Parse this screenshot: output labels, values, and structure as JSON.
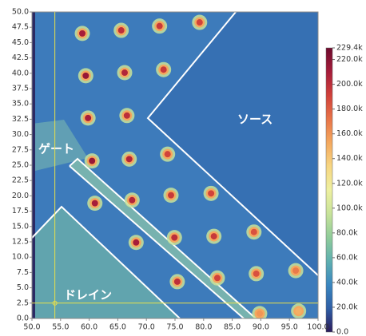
{
  "chart_data": {
    "type": "heatmap",
    "xlim": [
      50,
      100
    ],
    "ylim": [
      0,
      50
    ],
    "xticks": [
      {
        "value": 50,
        "label": "50.0"
      },
      {
        "value": 55,
        "label": "55.0"
      },
      {
        "value": 60,
        "label": "60.0"
      },
      {
        "value": 65,
        "label": "65.0"
      },
      {
        "value": 70,
        "label": "70.0"
      },
      {
        "value": 75,
        "label": "75.0"
      },
      {
        "value": 80,
        "label": "80.0"
      },
      {
        "value": 85,
        "label": "85.0"
      },
      {
        "value": 90,
        "label": "90.0"
      },
      {
        "value": 95,
        "label": "95.0"
      },
      {
        "value": 100,
        "label": "100.0"
      }
    ],
    "yticks": [
      {
        "value": 0,
        "label": "0.0"
      },
      2.5,
      {
        "value": 5,
        "label": "5.0"
      },
      7.5,
      {
        "value": 10,
        "label": "10.0"
      },
      12.5,
      {
        "value": 15,
        "label": "15.0"
      },
      17.5,
      {
        "value": 20,
        "label": "20.0"
      },
      22.5,
      {
        "value": 25,
        "label": "25.0"
      },
      27.5,
      {
        "value": 30,
        "label": "30.0"
      },
      32.5,
      {
        "value": 35,
        "label": "35.0"
      },
      37.5,
      {
        "value": 40,
        "label": "40.0"
      },
      42.5,
      {
        "value": 45,
        "label": "45.0"
      },
      47.5,
      {
        "value": 50,
        "label": "50.0"
      }
    ],
    "spots": {
      "x": [
        58.8,
        65.6,
        72.3,
        79.3,
        59.4,
        66.2,
        73.0,
        59.8,
        66.6,
        60.5,
        67.0,
        73.7,
        61.0,
        67.5,
        74.3,
        81.3,
        68.2,
        74.9,
        81.8,
        88.8,
        75.4,
        82.4,
        89.2,
        96.1,
        89.8,
        96.6
      ],
      "y": [
        46.5,
        47.0,
        47.7,
        48.3,
        39.6,
        40.1,
        40.6,
        32.7,
        33.1,
        25.7,
        26.0,
        26.8,
        18.8,
        19.3,
        20.1,
        20.4,
        12.4,
        13.2,
        13.4,
        14.1,
        6.0,
        6.6,
        7.3,
        7.8,
        0.8,
        1.2
      ],
      "values": [
        210000,
        200000,
        195000,
        190000,
        215000,
        205000,
        195000,
        210000,
        200000,
        215000,
        205000,
        190000,
        210000,
        205000,
        195000,
        190000,
        210000,
        200000,
        195000,
        185000,
        200000,
        190000,
        185000,
        170000,
        160000,
        150000
      ]
    },
    "crosshair": {
      "x": 54,
      "y": 2.5,
      "color": "#e8e04a"
    },
    "annotations": [
      "ゲート",
      "ソース",
      "ドレイン"
    ],
    "colorbar": {
      "lim": [
        0,
        229400
      ],
      "ticks": [
        {
          "value": 0,
          "label": "0.0"
        },
        {
          "value": 20000,
          "label": "20.0k"
        },
        {
          "value": 40000,
          "label": "40.0k"
        },
        {
          "value": 60000,
          "label": "60.0k"
        },
        {
          "value": 80000,
          "label": "80.0k"
        },
        {
          "value": 100000,
          "label": "100.0k"
        },
        {
          "value": 120000,
          "label": "120.0k"
        },
        {
          "value": 140000,
          "label": "140.0k"
        },
        {
          "value": 160000,
          "label": "160.0k"
        },
        {
          "value": 180000,
          "label": "180.0k"
        },
        {
          "value": 200000,
          "label": "200.0k"
        },
        {
          "value": 220000,
          "label": "220.0k"
        },
        {
          "value": 229400,
          "label": "229.4k"
        }
      ],
      "colors": [
        "#2b1b5c",
        "#2f5fa6",
        "#3a86c0",
        "#5fb0b0",
        "#90cc9a",
        "#c8e39a",
        "#eef0a0",
        "#f7d682",
        "#f4a85e",
        "#e87448",
        "#d0403a",
        "#a51c3a",
        "#6e0b2e"
      ]
    }
  }
}
